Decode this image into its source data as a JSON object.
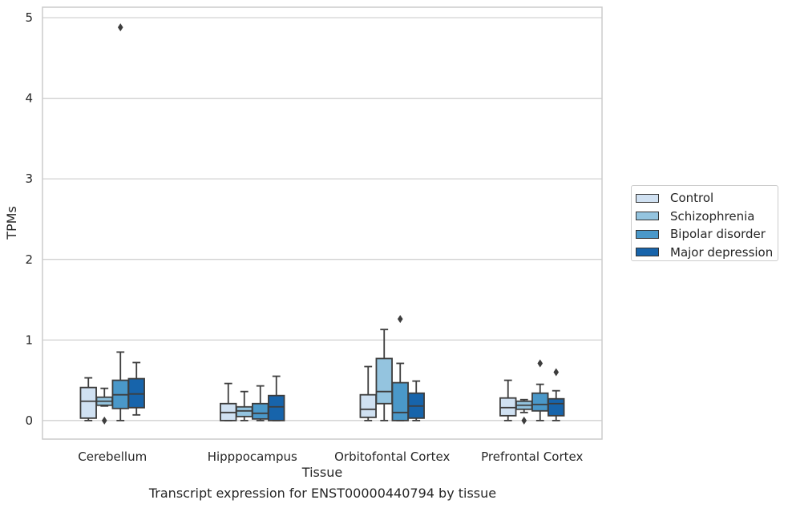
{
  "caption": "Transcript expression for ENST00000440794 by tissue",
  "chart_data": {
    "type": "boxplot",
    "xlabel": "Tissue",
    "ylabel": "TPMs",
    "ylim": [
      -0.23,
      5.13
    ],
    "yticks": [
      0,
      1,
      2,
      3,
      4,
      5
    ],
    "grid": true,
    "legend_position": "right",
    "categories": [
      "Cerebellum",
      "Hipppocampus",
      "Orbitofontal Cortex",
      "Prefrontal Cortex"
    ],
    "series": [
      {
        "name": "Control",
        "color": "#d0e1f2",
        "boxes": [
          {
            "whisker_low": 0.0,
            "q1": 0.03,
            "median": 0.24,
            "q3": 0.41,
            "whisker_high": 0.53,
            "outliers": []
          },
          {
            "whisker_low": 0.0,
            "q1": 0.0,
            "median": 0.1,
            "q3": 0.21,
            "whisker_high": 0.46,
            "outliers": []
          },
          {
            "whisker_low": 0.0,
            "q1": 0.04,
            "median": 0.14,
            "q3": 0.32,
            "whisker_high": 0.67,
            "outliers": []
          },
          {
            "whisker_low": 0.0,
            "q1": 0.06,
            "median": 0.16,
            "q3": 0.28,
            "whisker_high": 0.5,
            "outliers": []
          }
        ]
      },
      {
        "name": "Schizophrenia",
        "color": "#94c4df",
        "boxes": [
          {
            "whisker_low": 0.18,
            "q1": 0.19,
            "median": 0.24,
            "q3": 0.29,
            "whisker_high": 0.4,
            "outliers": [
              0.0
            ]
          },
          {
            "whisker_low": 0.0,
            "q1": 0.05,
            "median": 0.12,
            "q3": 0.17,
            "whisker_high": 0.36,
            "outliers": []
          },
          {
            "whisker_low": 0.0,
            "q1": 0.21,
            "median": 0.36,
            "q3": 0.77,
            "whisker_high": 1.13,
            "outliers": []
          },
          {
            "whisker_low": 0.1,
            "q1": 0.14,
            "median": 0.19,
            "q3": 0.24,
            "whisker_high": 0.26,
            "outliers": [
              0.0
            ]
          }
        ]
      },
      {
        "name": "Bipolar disorder",
        "color": "#4a98c9",
        "boxes": [
          {
            "whisker_low": 0.0,
            "q1": 0.15,
            "median": 0.32,
            "q3": 0.5,
            "whisker_high": 0.85,
            "outliers": [
              4.88
            ]
          },
          {
            "whisker_low": 0.0,
            "q1": 0.02,
            "median": 0.09,
            "q3": 0.21,
            "whisker_high": 0.43,
            "outliers": []
          },
          {
            "whisker_low": 0.0,
            "q1": 0.0,
            "median": 0.1,
            "q3": 0.47,
            "whisker_high": 0.71,
            "outliers": [
              1.26
            ]
          },
          {
            "whisker_low": 0.0,
            "q1": 0.12,
            "median": 0.2,
            "q3": 0.34,
            "whisker_high": 0.45,
            "outliers": [
              0.71
            ]
          }
        ]
      },
      {
        "name": "Major depression",
        "color": "#1764ab",
        "boxes": [
          {
            "whisker_low": 0.07,
            "q1": 0.16,
            "median": 0.33,
            "q3": 0.52,
            "whisker_high": 0.72,
            "outliers": []
          },
          {
            "whisker_low": 0.0,
            "q1": 0.0,
            "median": 0.17,
            "q3": 0.31,
            "whisker_high": 0.55,
            "outliers": []
          },
          {
            "whisker_low": 0.0,
            "q1": 0.03,
            "median": 0.18,
            "q3": 0.34,
            "whisker_high": 0.49,
            "outliers": []
          },
          {
            "whisker_low": 0.0,
            "q1": 0.06,
            "median": 0.21,
            "q3": 0.27,
            "whisker_high": 0.37,
            "outliers": [
              0.6
            ]
          }
        ]
      }
    ]
  }
}
